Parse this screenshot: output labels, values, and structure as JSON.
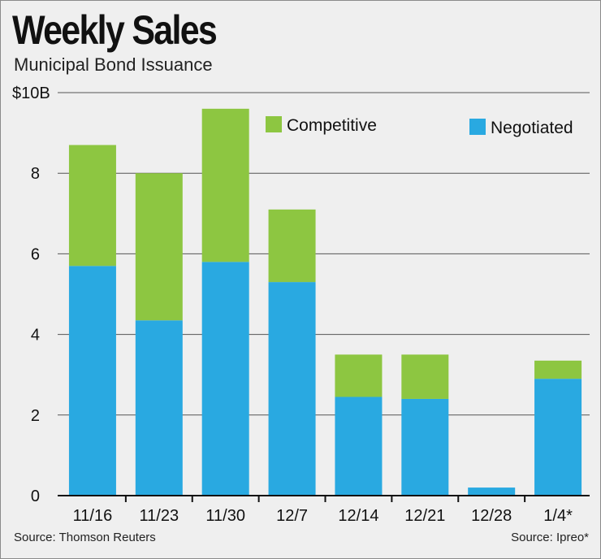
{
  "title": "Weekly Sales",
  "subtitle": "Municipal Bond Issuance",
  "source_left": "Source: Thomson Reuters",
  "source_right": "Source: Ipreo*",
  "colors": {
    "competitive": "#8dc641",
    "negotiated": "#29a9e1",
    "gridline": "#555555",
    "background": "#efefef"
  },
  "chart_data": {
    "type": "bar",
    "stacked": true,
    "categories": [
      "11/16",
      "11/23",
      "11/30",
      "12/7",
      "12/14",
      "12/21",
      "12/28",
      "1/4*"
    ],
    "series": [
      {
        "name": "Negotiated",
        "values": [
          5.7,
          4.35,
          5.8,
          5.3,
          2.45,
          2.4,
          0.2,
          2.9
        ]
      },
      {
        "name": "Competitive",
        "values": [
          3.0,
          3.65,
          3.8,
          1.8,
          1.05,
          1.1,
          0.0,
          0.45
        ]
      }
    ],
    "yticks": [
      "0",
      "2",
      "4",
      "6",
      "8",
      "$10B"
    ],
    "ylim": [
      0,
      10
    ],
    "grid": true,
    "legend": [
      {
        "label": "Competitive",
        "color": "#8dc641"
      },
      {
        "label": "Negotiated",
        "color": "#29a9e1"
      }
    ],
    "legend_position": "top-right"
  }
}
